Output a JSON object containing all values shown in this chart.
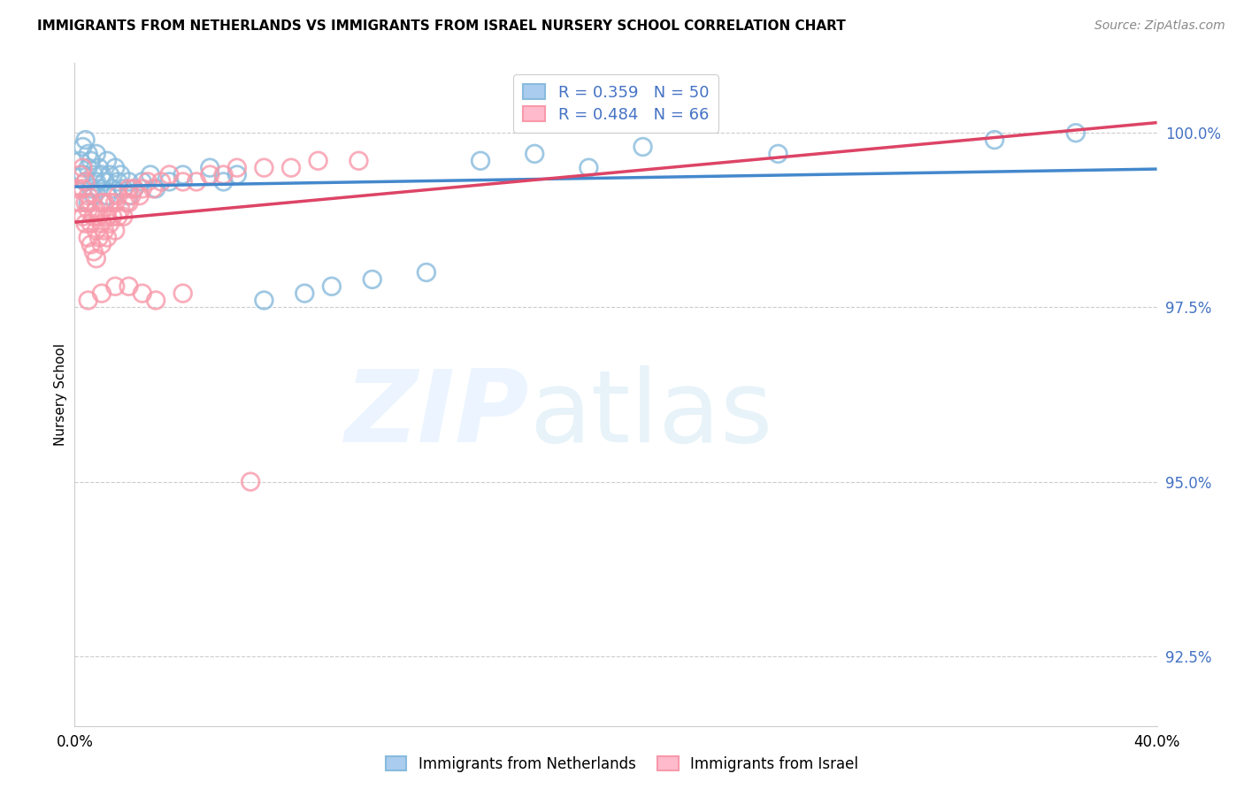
{
  "title": "IMMIGRANTS FROM NETHERLANDS VS IMMIGRANTS FROM ISRAEL NURSERY SCHOOL CORRELATION CHART",
  "source": "Source: ZipAtlas.com",
  "ylabel": "Nursery School",
  "yticks": [
    92.5,
    95.0,
    97.5,
    100.0
  ],
  "ytick_labels": [
    "92.5%",
    "95.0%",
    "97.5%",
    "100.0%"
  ],
  "xmin": 0.0,
  "xmax": 40.0,
  "ymin": 91.5,
  "ymax": 101.0,
  "netherlands_color": "#88bbdd",
  "israel_color": "#f899aa",
  "netherlands_line_color": "#4488cc",
  "israel_line_color": "#dd4466",
  "legend_R_netherlands": "R = 0.359",
  "legend_N_netherlands": "N = 50",
  "legend_R_israel": "R = 0.484",
  "legend_N_israel": "N = 66",
  "legend_label_netherlands": "Immigrants from Netherlands",
  "legend_label_israel": "Immigrants from Israel",
  "nl_x": [
    0.2,
    0.3,
    0.3,
    0.4,
    0.4,
    0.5,
    0.5,
    0.5,
    0.6,
    0.6,
    0.7,
    0.7,
    0.8,
    0.8,
    0.9,
    0.9,
    1.0,
    1.0,
    1.1,
    1.2,
    1.2,
    1.3,
    1.4,
    1.5,
    1.6,
    1.7,
    1.8,
    2.0,
    2.0,
    2.2,
    2.5,
    2.8,
    3.0,
    3.5,
    4.0,
    5.0,
    5.5,
    6.0,
    7.0,
    8.5,
    9.5,
    11.0,
    13.0,
    15.0,
    17.0,
    19.0,
    21.0,
    26.0,
    34.0,
    37.0
  ],
  "nl_y": [
    99.6,
    99.4,
    99.8,
    99.3,
    99.9,
    99.5,
    99.7,
    99.0,
    99.2,
    99.6,
    99.1,
    99.4,
    99.3,
    99.7,
    99.2,
    99.5,
    99.0,
    99.4,
    99.3,
    99.1,
    99.6,
    99.4,
    99.2,
    99.5,
    99.3,
    99.4,
    99.2,
    99.1,
    99.3,
    99.2,
    99.3,
    99.4,
    99.2,
    99.3,
    99.4,
    99.5,
    99.3,
    99.4,
    97.6,
    97.7,
    97.8,
    97.9,
    98.0,
    99.6,
    99.7,
    99.5,
    99.8,
    99.7,
    99.9,
    100.0
  ],
  "il_x": [
    0.1,
    0.2,
    0.2,
    0.3,
    0.3,
    0.3,
    0.4,
    0.4,
    0.4,
    0.5,
    0.5,
    0.5,
    0.6,
    0.6,
    0.6,
    0.7,
    0.7,
    0.8,
    0.8,
    0.8,
    0.9,
    0.9,
    1.0,
    1.0,
    1.0,
    1.1,
    1.1,
    1.2,
    1.2,
    1.3,
    1.3,
    1.4,
    1.5,
    1.5,
    1.6,
    1.6,
    1.7,
    1.8,
    1.9,
    2.0,
    2.0,
    2.1,
    2.2,
    2.4,
    2.5,
    2.7,
    2.9,
    3.2,
    3.5,
    4.0,
    4.5,
    5.0,
    5.5,
    6.0,
    7.0,
    8.0,
    9.0,
    10.5,
    0.5,
    1.0,
    1.5,
    2.0,
    2.5,
    3.0,
    4.0,
    6.5
  ],
  "il_y": [
    99.2,
    99.0,
    99.4,
    98.8,
    99.2,
    99.5,
    98.7,
    99.0,
    99.3,
    98.5,
    98.9,
    99.1,
    98.4,
    98.7,
    99.0,
    98.3,
    98.8,
    98.2,
    98.6,
    98.9,
    98.5,
    98.8,
    98.4,
    98.7,
    99.0,
    98.6,
    99.0,
    98.5,
    98.8,
    98.7,
    99.0,
    98.8,
    98.6,
    99.0,
    98.8,
    99.1,
    98.9,
    98.8,
    99.0,
    99.0,
    99.2,
    99.1,
    99.2,
    99.1,
    99.2,
    99.3,
    99.2,
    99.3,
    99.4,
    99.3,
    99.3,
    99.4,
    99.4,
    99.5,
    99.5,
    99.5,
    99.6,
    99.6,
    97.6,
    97.7,
    97.8,
    97.8,
    97.7,
    97.6,
    97.7,
    95.0
  ]
}
